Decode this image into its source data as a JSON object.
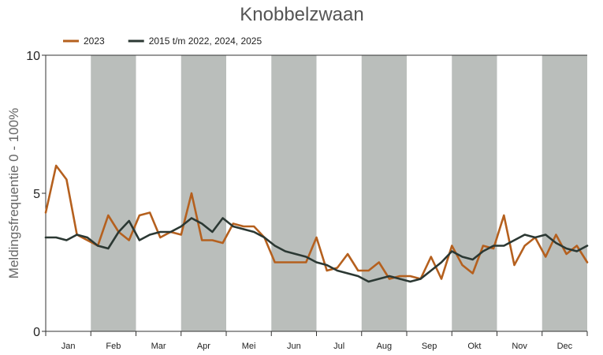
{
  "chart_data": {
    "type": "line",
    "title": "Knobbelzwaan",
    "ylabel": "Meldingsfrequentie 0 - 100%",
    "xlabel": "",
    "ylim": [
      0,
      10
    ],
    "yticks": [
      0,
      5,
      10
    ],
    "categories": [
      "Jan",
      "Feb",
      "Mar",
      "Apr",
      "Mei",
      "Jun",
      "Jul",
      "Aug",
      "Sep",
      "Okt",
      "Nov",
      "Dec"
    ],
    "x_unit": "week",
    "grid": false,
    "alternating_month_bands": true,
    "band_color": "#babebb",
    "legend_position": "top-left",
    "series": [
      {
        "name": "2023",
        "color": "#b5601e",
        "x": [
          1,
          2,
          3,
          4,
          5,
          6,
          7,
          8,
          9,
          10,
          11,
          12,
          13,
          14,
          15,
          16,
          17,
          18,
          19,
          20,
          21,
          22,
          23,
          24,
          25,
          26,
          27,
          28,
          29,
          30,
          31,
          32,
          33,
          34,
          35,
          36,
          37,
          38,
          39,
          40,
          41,
          42,
          43,
          44,
          45,
          46,
          47,
          48,
          49,
          50,
          51,
          52,
          53
        ],
        "values": [
          4.3,
          6.0,
          5.5,
          3.5,
          3.3,
          3.1,
          4.2,
          3.6,
          3.3,
          4.2,
          4.3,
          3.4,
          3.6,
          3.5,
          5.0,
          3.3,
          3.3,
          3.2,
          3.9,
          3.8,
          3.8,
          3.4,
          2.5,
          2.5,
          2.5,
          2.5,
          3.4,
          2.2,
          2.3,
          2.8,
          2.2,
          2.2,
          2.5,
          1.9,
          2.0,
          2.0,
          1.9,
          2.7,
          1.9,
          3.1,
          2.4,
          2.1,
          3.1,
          3.0,
          4.2,
          2.4,
          3.1,
          3.4,
          2.7,
          3.5,
          2.8,
          3.1,
          2.5
        ]
      },
      {
        "name": "2015 t/m 2022, 2024, 2025",
        "color": "#2b3833",
        "x": [
          1,
          2,
          3,
          4,
          5,
          6,
          7,
          8,
          9,
          10,
          11,
          12,
          13,
          14,
          15,
          16,
          17,
          18,
          19,
          20,
          21,
          22,
          23,
          24,
          25,
          26,
          27,
          28,
          29,
          30,
          31,
          32,
          33,
          34,
          35,
          36,
          37,
          38,
          39,
          40,
          41,
          42,
          43,
          44,
          45,
          46,
          47,
          48,
          49,
          50,
          51,
          52,
          53
        ],
        "values": [
          3.4,
          3.4,
          3.3,
          3.5,
          3.4,
          3.1,
          3.0,
          3.6,
          4.0,
          3.3,
          3.5,
          3.6,
          3.6,
          3.8,
          4.1,
          3.9,
          3.6,
          4.1,
          3.8,
          3.7,
          3.6,
          3.4,
          3.1,
          2.9,
          2.8,
          2.7,
          2.5,
          2.4,
          2.2,
          2.1,
          2.0,
          1.8,
          1.9,
          2.0,
          1.9,
          1.8,
          1.9,
          2.2,
          2.5,
          2.9,
          2.7,
          2.6,
          2.9,
          3.1,
          3.1,
          3.3,
          3.5,
          3.4,
          3.5,
          3.2,
          3.0,
          2.9,
          3.1
        ]
      }
    ]
  }
}
